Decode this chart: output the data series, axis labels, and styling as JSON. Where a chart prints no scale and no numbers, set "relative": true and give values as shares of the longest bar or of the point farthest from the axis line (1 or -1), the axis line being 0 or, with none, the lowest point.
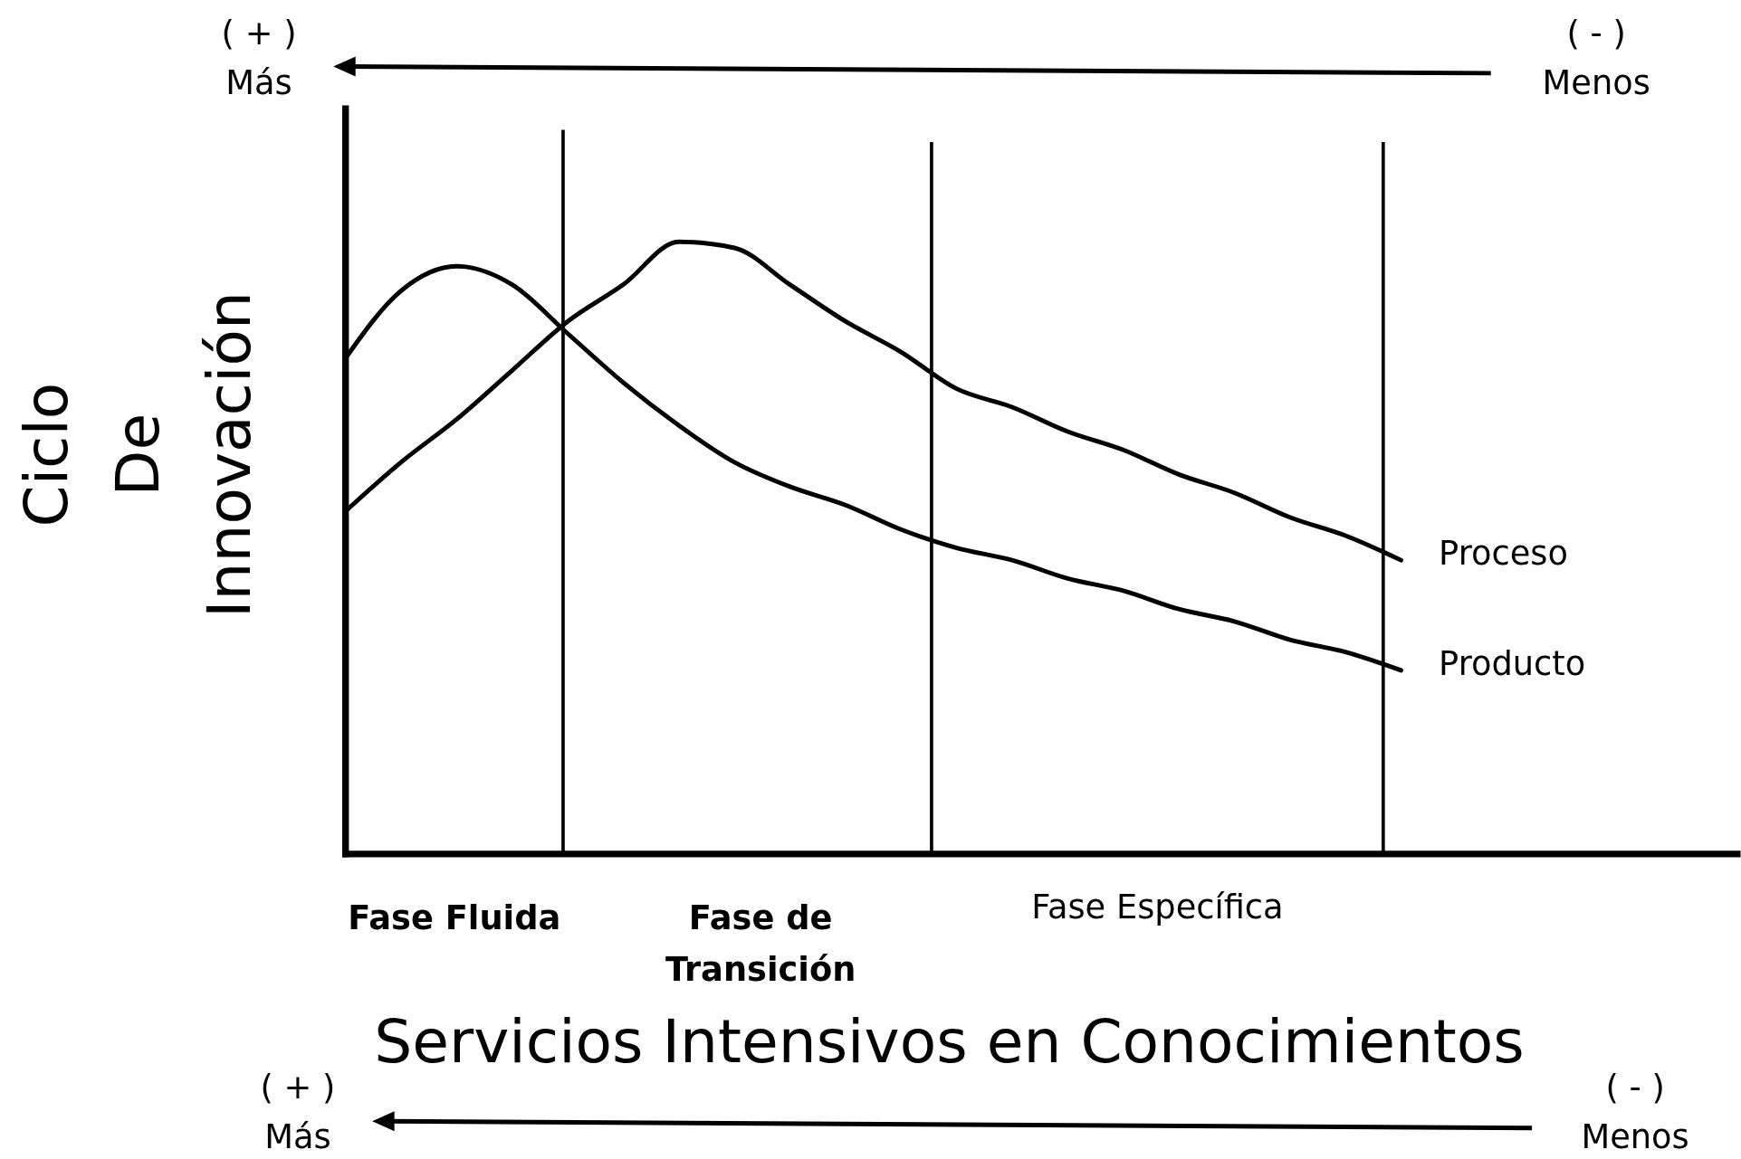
{
  "chart_data": {
    "type": "line",
    "relative": true,
    "xlabel": "Servicios Intensivos en Conocimientos",
    "ylabel": "Ciclo De Innovación",
    "categories": [
      null,
      null,
      null,
      null,
      null,
      null,
      null,
      null,
      null,
      null,
      null,
      null,
      null,
      null,
      null,
      null,
      null,
      null,
      null,
      null
    ],
    "series": [
      {
        "name": "Proceso",
        "color": "#000000",
        "values": [
          0.56,
          0.64,
          0.71,
          0.79,
          0.87,
          0.93,
          1,
          0.99,
          0.93,
          0.87,
          0.82,
          0.76,
          0.73,
          0.69,
          0.66,
          0.62,
          0.59,
          0.55,
          0.52,
          0.48
        ]
      },
      {
        "name": "Producto",
        "color": "#000000",
        "values": [
          0.81,
          0.92,
          0.96,
          0.93,
          0.85,
          0.77,
          0.7,
          0.64,
          0.6,
          0.57,
          0.53,
          0.5,
          0.48,
          0.45,
          0.43,
          0.4,
          0.38,
          0.35,
          0.33,
          0.3
        ]
      }
    ],
    "annotations": [
      "Fase Fluida",
      "Fase de Transición",
      "Fase Específica",
      "( + )",
      "Más",
      "( - )",
      "Menos",
      "( + )",
      "Más",
      "( - )",
      "Menos"
    ]
  }
}
